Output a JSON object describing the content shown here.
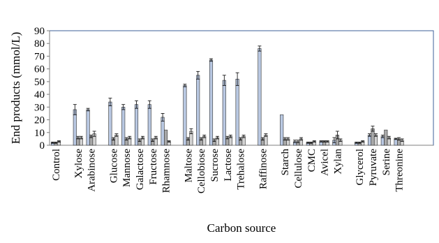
{
  "chart_data": {
    "type": "bar",
    "title": "",
    "xlabel": "Carbon source",
    "ylabel": "End products (mmol/L)",
    "ylim": [
      0,
      90
    ],
    "yticks": [
      0,
      10,
      20,
      30,
      40,
      50,
      60,
      70,
      80,
      90
    ],
    "grid": false,
    "legend": "none",
    "colors": {
      "bar1": "#b9c8e2",
      "bar2": "#a9a9a9",
      "bar3": "#d3d3d3",
      "axis": "#7f7f7f",
      "frame": "#3d5f9a",
      "stroke": "#2f2f2f"
    },
    "groups": [
      {
        "categories": [
          "Control"
        ]
      },
      {
        "categories": [
          "Xylose",
          "Arabinose"
        ]
      },
      {
        "categories": [
          "Glucose",
          "Mannose",
          "Galactose",
          "Fructose",
          "Rhamnose"
        ]
      },
      {
        "categories": [
          "Maltose",
          "Cellobiose",
          "Sucrose",
          "Lactose",
          "Trehalose"
        ]
      },
      {
        "categories": [
          "Raffinose"
        ]
      },
      {
        "categories": [
          "Starch",
          "Cellulose",
          "CMC",
          "Avicel",
          "Xylan"
        ]
      },
      {
        "categories": [
          "Glycerol",
          "Pyruvate",
          "Serine",
          "Threonine"
        ]
      }
    ],
    "series": [
      {
        "values": [
          2,
          28,
          28,
          34,
          30,
          32,
          32,
          22,
          47,
          55,
          67,
          51,
          52,
          76,
          24,
          3,
          2,
          3,
          4,
          2,
          8,
          7,
          5
        ],
        "errors": [
          0.5,
          4,
          1,
          3,
          2,
          3,
          3,
          3,
          1,
          3,
          1,
          4,
          5,
          2,
          0,
          1,
          0.5,
          0.5,
          2,
          0.5,
          1,
          1,
          0.5
        ]
      },
      {
        "values": [
          2,
          6,
          7,
          5,
          5,
          4,
          4,
          12,
          5,
          5,
          4,
          6,
          5,
          5,
          5,
          3,
          2,
          3,
          8,
          2,
          13,
          12,
          5
        ],
        "errors": [
          0.5,
          1,
          1,
          1,
          1,
          1,
          1,
          0,
          1,
          1,
          1,
          1,
          1,
          1,
          1,
          1,
          0.5,
          0.5,
          3,
          0.5,
          2,
          0,
          1
        ]
      },
      {
        "values": [
          3,
          6,
          9,
          8,
          6,
          6,
          6,
          3,
          11,
          7,
          6,
          7,
          7,
          8,
          5,
          5,
          3,
          3,
          4,
          3,
          8,
          6,
          4
        ],
        "errors": [
          0.5,
          1,
          2,
          1,
          1,
          1,
          1,
          0.5,
          2,
          1,
          1,
          1,
          1,
          1,
          1,
          1,
          0.5,
          0.5,
          1,
          0.5,
          1,
          1,
          1
        ]
      }
    ]
  }
}
